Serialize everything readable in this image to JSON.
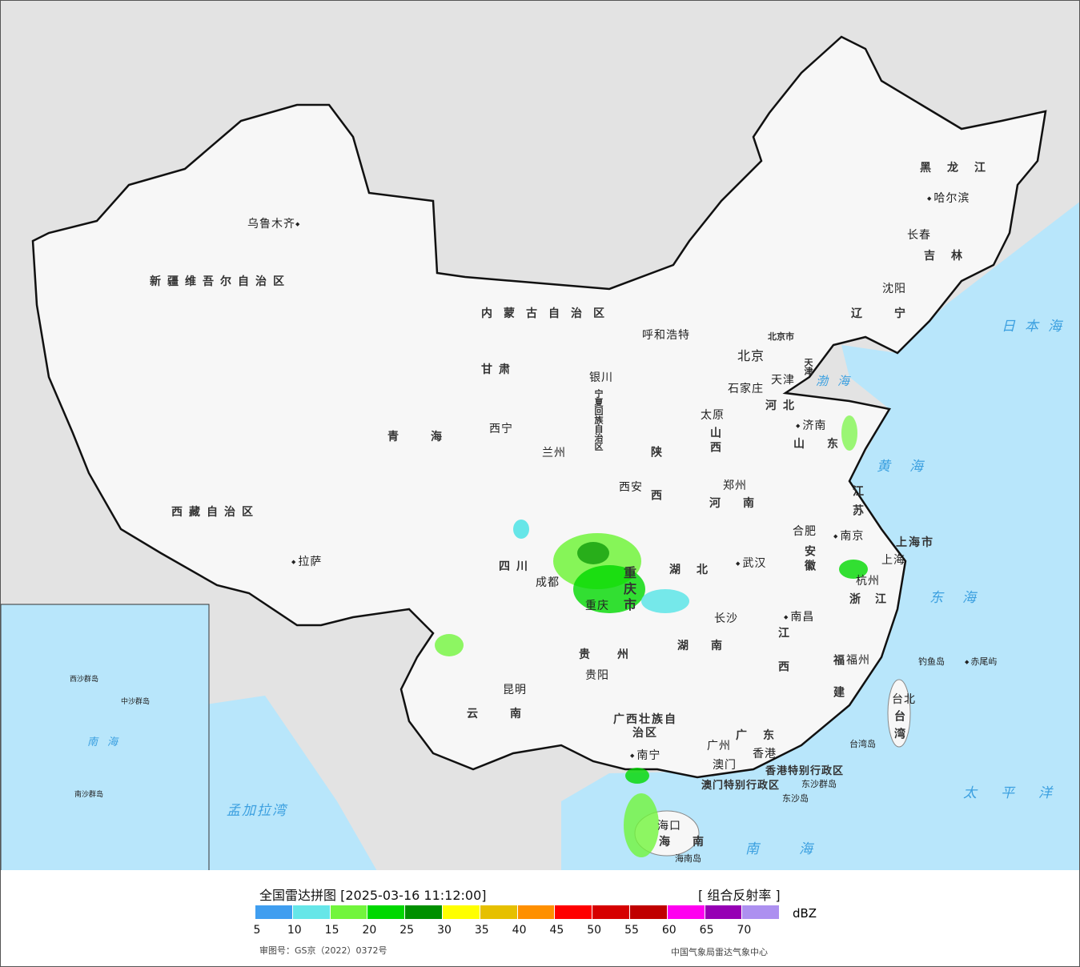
{
  "map": {
    "provinces": [
      "新疆维吾尔自治区",
      "西藏自治区",
      "青海",
      "甘肃",
      "内蒙古自治区",
      "黑龙江",
      "吉林",
      "辽宁",
      "河北",
      "山西",
      "陕西",
      "宁夏回族自治区",
      "四川",
      "重庆市",
      "湖北",
      "河南",
      "山东",
      "江苏",
      "安徽",
      "浙江",
      "江西",
      "湖南",
      "贵州",
      "云南",
      "广西壮族自治区",
      "广东",
      "福建",
      "台湾",
      "海南",
      "上海市",
      "北京市",
      "天津",
      "香港特别行政区",
      "澳门特别行政区"
    ],
    "cities": [
      "乌鲁木齐",
      "拉萨",
      "西宁",
      "兰州",
      "银川",
      "呼和浩特",
      "北京",
      "天津",
      "石家庄",
      "太原",
      "济南",
      "郑州",
      "西安",
      "成都",
      "重庆",
      "武汉",
      "合肥",
      "南京",
      "上海",
      "杭州",
      "长沙",
      "南昌",
      "福州",
      "贵阳",
      "昆明",
      "南宁",
      "广州",
      "澳门",
      "香港",
      "海口",
      "台北",
      "哈尔滨",
      "长春",
      "沈阳"
    ],
    "islands": [
      "钓鱼岛",
      "赤尾屿",
      "东沙群岛",
      "东沙岛",
      "台湾岛",
      "海南岛"
    ],
    "seas": [
      "日本海",
      "渤海",
      "黄海",
      "东海",
      "太平洋",
      "南海",
      "孟加拉湾"
    ],
    "inset": [
      "南海",
      "中沙群岛",
      "西沙群岛",
      "南沙群岛"
    ]
  },
  "legend": {
    "title": "全国雷达拼图 [2025-03-16 11:12:00]",
    "product": "[ 组合反射率 ]",
    "unit": "dBZ",
    "colors": [
      "#409ef0",
      "#66e6e8",
      "#72f53c",
      "#00d800",
      "#009000",
      "#ffff00",
      "#e6c000",
      "#ff9000",
      "#ff0000",
      "#d60000",
      "#c00000",
      "#ff00f0",
      "#9600b4",
      "#ad90f0"
    ],
    "ticks": [
      "5",
      "10",
      "15",
      "20",
      "25",
      "30",
      "35",
      "40",
      "45",
      "50",
      "55",
      "60",
      "65",
      "70"
    ],
    "approval": "审图号：GS京（2022）0372号",
    "source": "中国气象局雷达气象中心"
  }
}
